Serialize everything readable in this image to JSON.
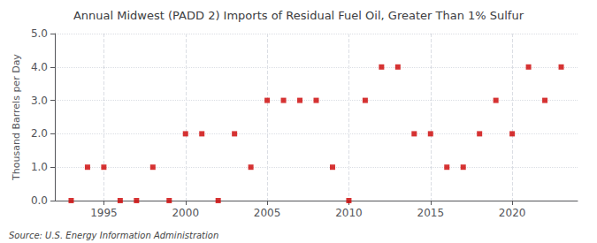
{
  "chart_data": {
    "type": "scatter",
    "title": "Annual Midwest (PADD 2) Imports of Residual Fuel Oil, Greater Than 1% Sulfur",
    "ylabel": "Thousand Barrels per Day",
    "annotations": [
      "Source: U.S. Energy Information Administration"
    ],
    "x": [
      1993,
      1994,
      1995,
      1996,
      1997,
      1998,
      1999,
      2000,
      2001,
      2002,
      2003,
      2004,
      2005,
      2006,
      2007,
      2008,
      2009,
      2010,
      2011,
      2012,
      2013,
      2014,
      2015,
      2016,
      2017,
      2018,
      2019,
      2020,
      2021,
      2022,
      2023
    ],
    "values": [
      0,
      1,
      1,
      0,
      0,
      1,
      0,
      2,
      2,
      0,
      2,
      1,
      3,
      3,
      3,
      3,
      1,
      0,
      3,
      4,
      4,
      2,
      2,
      1,
      1,
      2,
      3,
      2,
      4,
      3,
      4
    ],
    "color": "#cc0000",
    "marker": "square",
    "xlim": [
      1992,
      2024
    ],
    "xticks": [
      1995,
      2000,
      2005,
      2010,
      2015,
      2020
    ],
    "ylim": [
      0,
      5.0
    ],
    "yticks": [
      {
        "value": 0.0,
        "label": "0.0"
      },
      {
        "value": 1.0,
        "label": "1.0"
      },
      {
        "value": 2.0,
        "label": "2.0"
      },
      {
        "value": 3.0,
        "label": "3.0"
      },
      {
        "value": 4.0,
        "label": "4.0"
      },
      {
        "value": 5.0,
        "label": "5.0"
      }
    ],
    "grid": true
  }
}
